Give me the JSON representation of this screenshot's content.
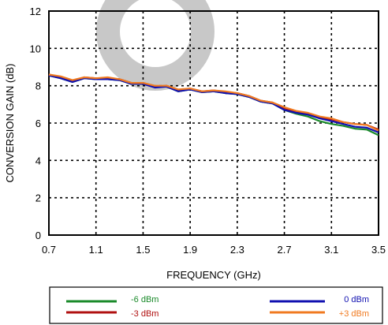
{
  "chart_data": {
    "type": "line",
    "xlabel": "FREQUENCY (GHz)",
    "ylabel": "CONVERSION GAIN (dB)",
    "xlim": [
      0.7,
      3.5
    ],
    "ylim": [
      0,
      12
    ],
    "xticks": [
      "0.7",
      "1.1",
      "1.5",
      "1.9",
      "2.3",
      "2.7",
      "3.1",
      "3.5"
    ],
    "yticks": [
      "0",
      "2",
      "4",
      "6",
      "8",
      "10",
      "12"
    ],
    "grid": true,
    "legend_position": "bottom",
    "x": [
      0.7,
      0.8,
      0.9,
      1.0,
      1.1,
      1.2,
      1.3,
      1.4,
      1.5,
      1.6,
      1.7,
      1.8,
      1.9,
      2.0,
      2.1,
      2.2,
      2.3,
      2.4,
      2.5,
      2.6,
      2.7,
      2.8,
      2.9,
      3.0,
      3.1,
      3.2,
      3.3,
      3.4,
      3.5
    ],
    "series": [
      {
        "name": "-6 dBm",
        "color": "#1a8a2a",
        "values": [
          8.55,
          8.4,
          8.2,
          8.4,
          8.35,
          8.35,
          8.3,
          8.1,
          8.1,
          7.95,
          7.95,
          7.7,
          7.8,
          7.65,
          7.7,
          7.6,
          7.55,
          7.4,
          7.15,
          7.05,
          6.7,
          6.5,
          6.35,
          6.1,
          5.95,
          5.85,
          5.7,
          5.65,
          5.35
        ]
      },
      {
        "name": "-3 dBm",
        "color": "#b01010",
        "values": [
          8.6,
          8.45,
          8.25,
          8.45,
          8.4,
          8.4,
          8.35,
          8.15,
          8.15,
          7.95,
          8.0,
          7.75,
          7.85,
          7.7,
          7.75,
          7.65,
          7.6,
          7.45,
          7.2,
          7.1,
          6.8,
          6.6,
          6.5,
          6.3,
          6.2,
          6.05,
          5.95,
          5.9,
          5.65
        ]
      },
      {
        "name": "0 dBm",
        "color": "#1010b0",
        "values": [
          8.55,
          8.4,
          8.2,
          8.4,
          8.35,
          8.35,
          8.3,
          8.1,
          8.1,
          7.9,
          7.95,
          7.7,
          7.8,
          7.65,
          7.7,
          7.6,
          7.55,
          7.4,
          7.15,
          7.05,
          6.7,
          6.55,
          6.45,
          6.25,
          6.1,
          5.95,
          5.8,
          5.75,
          5.5
        ]
      },
      {
        "name": "+3 dBm",
        "color": "#f07a20",
        "values": [
          8.6,
          8.5,
          8.3,
          8.45,
          8.4,
          8.45,
          8.35,
          8.15,
          8.15,
          8.0,
          8.0,
          7.8,
          7.85,
          7.7,
          7.75,
          7.7,
          7.6,
          7.45,
          7.2,
          7.1,
          6.85,
          6.65,
          6.55,
          6.35,
          6.25,
          6.05,
          5.95,
          5.9,
          5.6
        ]
      }
    ]
  },
  "decorations": {
    "watermark_icon": "donut-watermark-icon",
    "watermark_color": "#c8c8c8"
  }
}
